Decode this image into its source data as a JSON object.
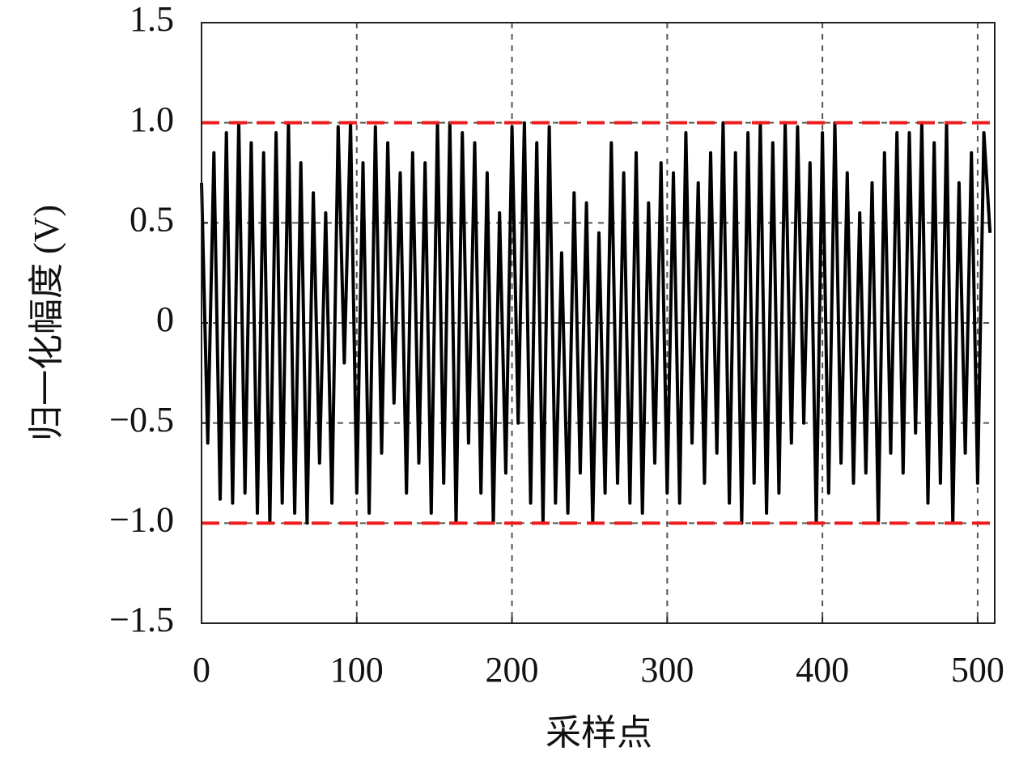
{
  "chart_data": {
    "type": "line",
    "x_label": "采样点",
    "y_label": "归一化幅度 (V)",
    "x": [
      0,
      4,
      8,
      12,
      16,
      20,
      24,
      28,
      32,
      36,
      40,
      44,
      48,
      52,
      56,
      60,
      64,
      68,
      72,
      76,
      80,
      84,
      88,
      92,
      96,
      100,
      104,
      108,
      112,
      116,
      120,
      124,
      128,
      132,
      136,
      140,
      144,
      148,
      152,
      156,
      160,
      164,
      168,
      172,
      176,
      180,
      184,
      188,
      192,
      196,
      200,
      204,
      208,
      212,
      216,
      220,
      224,
      228,
      232,
      236,
      240,
      244,
      248,
      252,
      256,
      260,
      264,
      268,
      272,
      276,
      280,
      284,
      288,
      292,
      296,
      300,
      304,
      308,
      312,
      316,
      320,
      324,
      328,
      332,
      336,
      340,
      344,
      348,
      352,
      356,
      360,
      364,
      368,
      372,
      376,
      380,
      384,
      388,
      392,
      396,
      400,
      404,
      408,
      412,
      416,
      420,
      424,
      428,
      432,
      436,
      440,
      444,
      448,
      452,
      456,
      460,
      464,
      468,
      472,
      476,
      480,
      484,
      488,
      492,
      496,
      500,
      504,
      508
    ],
    "values": [
      0.7,
      -0.6,
      0.85,
      -0.88,
      0.95,
      -0.9,
      1.0,
      -0.85,
      0.9,
      -0.95,
      0.85,
      -1.0,
      0.95,
      -0.9,
      1.0,
      -0.95,
      0.8,
      -1.0,
      0.65,
      -0.7,
      0.55,
      -0.9,
      0.98,
      -0.2,
      1.0,
      -0.85,
      0.8,
      -0.95,
      0.98,
      -0.65,
      0.9,
      -0.4,
      0.75,
      -0.85,
      0.85,
      -0.7,
      0.8,
      -0.95,
      1.0,
      -0.8,
      1.0,
      -1.0,
      0.95,
      -0.6,
      0.9,
      -0.85,
      0.75,
      -1.0,
      0.55,
      -0.75,
      0.98,
      -0.5,
      1.0,
      -0.9,
      0.9,
      -1.0,
      0.98,
      -0.9,
      0.35,
      -0.95,
      0.65,
      -0.75,
      0.6,
      -1.0,
      0.45,
      -0.85,
      0.9,
      -0.8,
      0.75,
      -0.9,
      0.85,
      -0.95,
      0.6,
      -0.7,
      0.8,
      -0.85,
      0.75,
      -0.9,
      0.95,
      -0.6,
      0.7,
      -0.8,
      0.85,
      -0.65,
      1.0,
      -0.9,
      0.85,
      -1.0,
      0.95,
      -0.8,
      1.0,
      -0.95,
      0.9,
      -0.85,
      1.0,
      -0.6,
      0.98,
      -0.5,
      0.8,
      -1.0,
      0.95,
      -0.85,
      1.0,
      -0.7,
      0.75,
      -0.8,
      0.55,
      -0.75,
      0.7,
      -1.0,
      0.85,
      -0.65,
      0.95,
      -0.75,
      0.95,
      -0.55,
      1.0,
      -0.9,
      0.9,
      -0.8,
      1.0,
      -1.0,
      0.7,
      -0.65,
      0.85,
      -0.8,
      0.95,
      0.45
    ],
    "color": "#000000",
    "reference_lines": [
      1,
      -1
    ],
    "reference_color": "#ee1c1c",
    "xlim": [
      0,
      511
    ],
    "ylim": [
      -1.5,
      1.5
    ],
    "xticks": [
      0,
      100,
      200,
      300,
      400,
      500
    ],
    "yticks": [
      {
        "value": 1.5,
        "label": "1.5"
      },
      {
        "value": 1,
        "label": "1.0"
      },
      {
        "value": 0.5,
        "label": "0.5"
      },
      0,
      {
        "value": -0.5,
        "label": "−0.5"
      },
      {
        "value": -1,
        "label": "−1.0"
      },
      {
        "value": -1.5,
        "label": "−1.5"
      }
    ],
    "grid": true
  }
}
